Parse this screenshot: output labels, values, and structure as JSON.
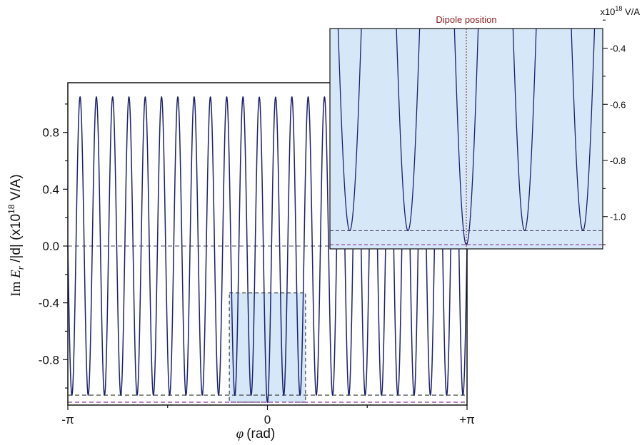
{
  "chart_data": [
    {
      "type": "line",
      "role": "main",
      "xlabel_symbol": "φ",
      "xlabel_unit": "(rad)",
      "ylabel_prefix": "Im ",
      "ylabel_symbol": "E",
      "ylabel_sub": "r",
      "ylabel_mid": " /|d| (x10",
      "ylabel_exp": "18",
      "ylabel_unit": " V/A)",
      "xlim": [
        -3.14159,
        3.14159
      ],
      "ylim": [
        -1.12,
        1.15
      ],
      "xticks": [
        {
          "value": -3.14159,
          "label": "-π"
        },
        {
          "value": 0,
          "label": "0"
        },
        {
          "value": 3.14159,
          "label": "+π"
        }
      ],
      "yticks": [
        {
          "value": 0.8,
          "label": "0.8"
        },
        {
          "value": 0.4,
          "label": "0.4"
        },
        {
          "value": 0.0,
          "label": "0.0"
        },
        {
          "value": -0.4,
          "label": "-0.4"
        },
        {
          "value": -0.8,
          "label": "-0.8"
        }
      ],
      "series": [
        {
          "oscillation_periods": 24.5,
          "amplitude_max": 1.05,
          "minimum": -1.05,
          "minimum_at_zero": -1.1,
          "dip_width": 0.05,
          "color": "#1c1f6e"
        }
      ],
      "reference_lines": [
        {
          "y": 0.0,
          "color": "#6a6a7a",
          "style": "dashed"
        },
        {
          "y": -1.05,
          "color": "#333333",
          "style": "dashed"
        },
        {
          "y": -1.1,
          "color": "#8a3a9a",
          "style": "dashed"
        }
      ],
      "highlight_region": {
        "x": [
          -0.6,
          0.6
        ],
        "y": [
          -1.1,
          -0.33
        ],
        "fill": "#d6e8f7",
        "border": "#222222"
      }
    },
    {
      "type": "line",
      "role": "inset",
      "unit_label_prefix": "x10",
      "unit_label_exp": "18",
      "unit_label_suffix": " V/A",
      "annotation": "Dipole position",
      "annotation_color": "#8b1a1a",
      "xlim": [
        -0.6,
        0.6
      ],
      "ylim": [
        -1.115,
        -0.33
      ],
      "yticks": [
        {
          "value": -0.4,
          "label": "-0.4"
        },
        {
          "value": -0.6,
          "label": "-0.6"
        },
        {
          "value": -0.8,
          "label": "-0.8"
        },
        {
          "value": -1.0,
          "label": "-1.0"
        }
      ],
      "background": "#d6e8f7",
      "reference_lines": [
        {
          "y": -1.05,
          "color": "#555577",
          "style": "dashed"
        },
        {
          "y": -1.1,
          "color": "#8a3a9a",
          "style": "dashed"
        }
      ],
      "dipole_x": 0
    }
  ]
}
